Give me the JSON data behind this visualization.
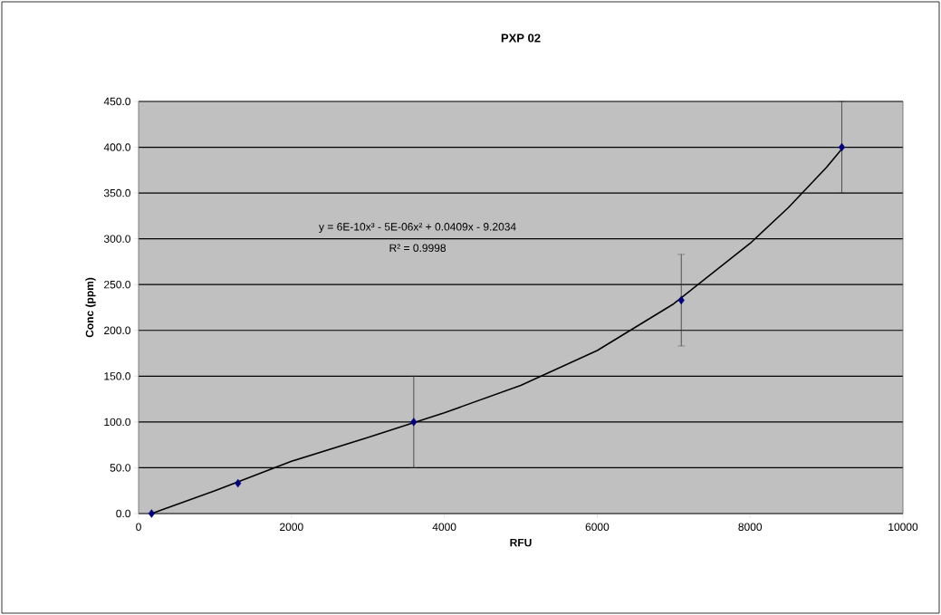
{
  "chart_data": {
    "type": "scatter",
    "title": "PXP 02",
    "xlabel": "RFU",
    "ylabel": "Conc (ppm)",
    "annotations": [
      "y = 6E-10x³ - 5E-06x² + 0.0409x - 9.2034",
      "R² = 0.9998"
    ],
    "xlim": [
      0,
      10000
    ],
    "xticks": [
      0,
      2000,
      4000,
      6000,
      8000,
      10000
    ],
    "ylim": [
      0,
      450
    ],
    "yticks": [
      {
        "value": 0,
        "label": "0.0"
      },
      {
        "value": 50,
        "label": "50.0"
      },
      {
        "value": 100,
        "label": "100.0"
      },
      {
        "value": 150,
        "label": "150.0"
      },
      {
        "value": 200,
        "label": "200.0"
      },
      {
        "value": 250,
        "label": "250.0"
      },
      {
        "value": 300,
        "label": "300.0"
      },
      {
        "value": 350,
        "label": "350.0"
      },
      {
        "value": 400,
        "label": "400.0"
      },
      {
        "value": 450,
        "label": "450.0"
      }
    ],
    "grid": "y",
    "series": [
      {
        "color": "#000080",
        "marker": "diamond",
        "x": [
          170,
          1300,
          3600,
          7100,
          9200
        ],
        "values": [
          0,
          33,
          100,
          233,
          400
        ],
        "errors": [
          null,
          null,
          50,
          50,
          50
        ]
      },
      {
        "type": "line",
        "color": "#000000",
        "marker": "none",
        "x": [
          170,
          1000,
          2000,
          3000,
          4000,
          5000,
          6000,
          7000,
          8000,
          8500,
          9000,
          9200
        ],
        "values": [
          0,
          25,
          57,
          83,
          110,
          140,
          178,
          229,
          295,
          334,
          378,
          398
        ]
      }
    ]
  }
}
